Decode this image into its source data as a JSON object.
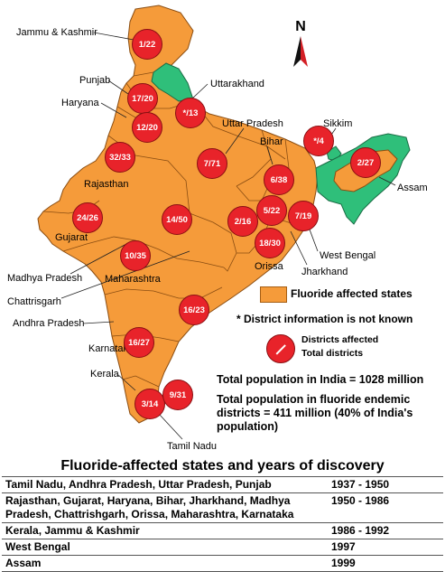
{
  "north_label": "N",
  "map": {
    "states": [
      {
        "name": "Jammu & Kashmir",
        "affected": true
      },
      {
        "name": "Punjab",
        "affected": true
      },
      {
        "name": "Haryana",
        "affected": true
      },
      {
        "name": "Uttarakhand",
        "affected": false
      },
      {
        "name": "Uttar Pradesh",
        "affected": true
      },
      {
        "name": "Sikkim",
        "affected": false
      },
      {
        "name": "Bihar",
        "affected": true
      },
      {
        "name": "Assam",
        "affected": true
      },
      {
        "name": "Rajasthan",
        "affected": true
      },
      {
        "name": "Gujarat",
        "affected": true
      },
      {
        "name": "West Bengal",
        "affected": true
      },
      {
        "name": "Jharkhand",
        "affected": true
      },
      {
        "name": "Madhya Pradesh",
        "affected": true
      },
      {
        "name": "Maharashtra",
        "affected": true
      },
      {
        "name": "Orissa",
        "affected": true
      },
      {
        "name": "Chattrisgarh",
        "affected": true
      },
      {
        "name": "Andhra Pradesh",
        "affected": true
      },
      {
        "name": "Karnataka",
        "affected": true
      },
      {
        "name": "Kerala",
        "affected": true
      },
      {
        "name": "Tamil Nadu",
        "affected": true
      }
    ],
    "labels": {
      "jk": "Jammu & Kashmir",
      "punjab": "Punjab",
      "haryana": "Haryana",
      "uttarakhand": "Uttarakhand",
      "up": "Uttar Pradesh",
      "sikkim": "Sikkim",
      "bihar": "Bihar",
      "assam": "Assam",
      "rajasthan": "Rajasthan",
      "gujarat": "Gujarat",
      "westbengal": "West Bengal",
      "jharkhand": "Jharkhand",
      "mp": "Madhya Pradesh",
      "maharashtra": "Maharashtra",
      "orissa": "Orissa",
      "chattisgarh": "Chattrisgarh",
      "ap": "Andhra Pradesh",
      "karnataka": "Karnataka",
      "kerala": "Kerala",
      "tamilnadu": "Tamil Nadu"
    },
    "badges": {
      "jk": "1/22",
      "punjab": "17/20",
      "haryana": "12/20",
      "uttarakhand": "*/13",
      "up": "7/71",
      "sikkim": "*/4",
      "bihar": "6/38",
      "assam": "2/27",
      "rajasthan": "32/33",
      "gujarat": "24/26",
      "mp": "14/50",
      "westbengal": "7/19",
      "jharkhand": "5/22",
      "chattisgarh": "2/16",
      "orissa": "18/30",
      "maharashtra": "10/35",
      "ap": "16/23",
      "karnataka": "16/27",
      "kerala": "3/14",
      "tamilnadu": "9/31"
    }
  },
  "legend": {
    "affected_states": "Fluoride affected states",
    "unknown_note": "* District information is not known",
    "districts_affected": "Districts affected",
    "total_districts": "Total districts"
  },
  "stats": {
    "total_population": "Total population in India = 1028 million",
    "endemic_line1": "Total population in fluoride endemic",
    "endemic_line2": "districts = 411 million (40% of India's",
    "endemic_line3": "population)"
  },
  "colors": {
    "affected": "#f59b3a",
    "not_affected": "#2fbf7a",
    "badge": "#e8232a"
  },
  "table": {
    "title": "Fluoride-affected states and years of discovery",
    "rows": [
      {
        "states": "Tamil Nadu, Andhra Pradesh, Uttar Pradesh, Punjab",
        "years": "1937 - 1950"
      },
      {
        "states": "Rajasthan, Gujarat, Haryana, Bihar, Jharkhand, Madhya Pradesh, Chattrishgarh, Orissa, Maharashtra, Karnataka",
        "years": "1950 - 1986"
      },
      {
        "states": "Kerala, Jammu & Kashmir",
        "years": "1986 - 1992"
      },
      {
        "states": "West Bengal",
        "years": "1997"
      },
      {
        "states": "Assam",
        "years": "1999"
      }
    ]
  }
}
